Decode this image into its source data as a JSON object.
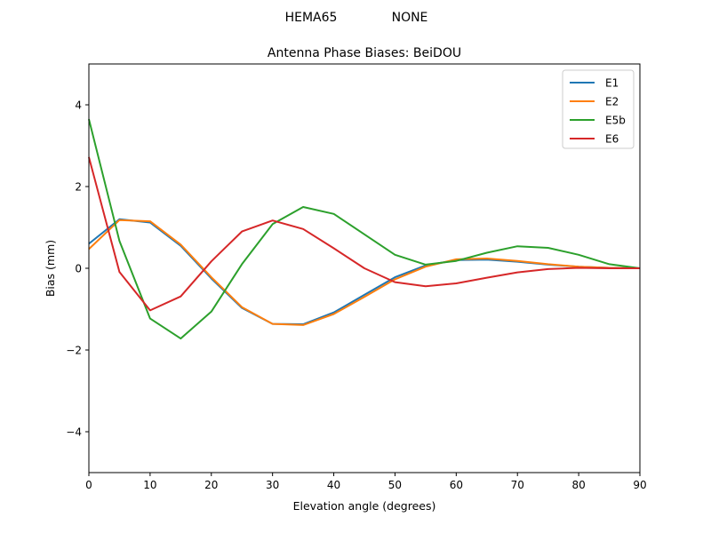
{
  "figure": {
    "suptitle_left": "HEMA65",
    "suptitle_right": "NONE"
  },
  "chart_data": {
    "type": "line",
    "title": "Antenna Phase Biases: BeiDOU",
    "xlabel": "Elevation angle (degrees)",
    "ylabel": "Bias (mm)",
    "xlim": [
      0,
      90
    ],
    "ylim": [
      -5,
      5
    ],
    "xticks": [
      0,
      10,
      20,
      30,
      40,
      50,
      60,
      70,
      80,
      90
    ],
    "yticks": [
      -4,
      -2,
      0,
      2,
      4
    ],
    "ytick_labels": [
      "−4",
      "−2",
      "0",
      "2",
      "4"
    ],
    "grid": false,
    "legend_position": "upper right",
    "x": [
      0,
      5,
      10,
      15,
      20,
      25,
      30,
      35,
      40,
      45,
      50,
      55,
      60,
      65,
      70,
      75,
      80,
      85,
      90
    ],
    "series": [
      {
        "name": "E1",
        "color": "#1f77b4",
        "values": [
          0.6,
          1.2,
          1.12,
          0.55,
          -0.25,
          -0.97,
          -1.36,
          -1.37,
          -1.08,
          -0.65,
          -0.22,
          0.07,
          0.2,
          0.21,
          0.16,
          0.09,
          0.04,
          0.01,
          0.0
        ]
      },
      {
        "name": "E2",
        "color": "#ff7f0e",
        "values": [
          0.47,
          1.18,
          1.15,
          0.58,
          -0.22,
          -0.95,
          -1.36,
          -1.39,
          -1.12,
          -0.7,
          -0.27,
          0.04,
          0.22,
          0.24,
          0.18,
          0.1,
          0.04,
          0.01,
          0.0
        ]
      },
      {
        "name": "E5b",
        "color": "#2ca02c",
        "values": [
          3.65,
          0.67,
          -1.23,
          -1.72,
          -1.06,
          0.1,
          1.08,
          1.5,
          1.33,
          0.83,
          0.33,
          0.09,
          0.18,
          0.38,
          0.54,
          0.5,
          0.33,
          0.1,
          0.0
        ]
      },
      {
        "name": "E6",
        "color": "#d62728",
        "values": [
          2.72,
          -0.09,
          -1.03,
          -0.69,
          0.17,
          0.9,
          1.17,
          0.96,
          0.49,
          0.0,
          -0.34,
          -0.44,
          -0.37,
          -0.23,
          -0.1,
          -0.02,
          0.01,
          0.0,
          0.0
        ]
      }
    ]
  }
}
